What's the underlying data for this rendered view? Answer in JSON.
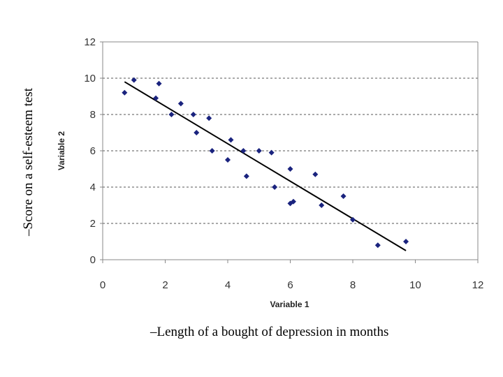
{
  "slide": {
    "y_caption": "–Score on a self-esteem test",
    "x_caption": "–Length of a bought of depression in months"
  },
  "chart_data": {
    "type": "scatter",
    "title": "",
    "xlabel": "Variable 1",
    "ylabel": "Variable 2",
    "xlim": [
      0,
      12
    ],
    "ylim": [
      0,
      12
    ],
    "xticks": [
      "0",
      "2",
      "4",
      "6",
      "8",
      "10",
      "12"
    ],
    "yticks": [
      "0",
      "2",
      "4",
      "6",
      "8",
      "10",
      "12"
    ],
    "grid": "horizontal dashed",
    "marker_color": "#1a237e",
    "line_color": "#000000",
    "points": [
      [
        0.7,
        9.2
      ],
      [
        1.0,
        9.9
      ],
      [
        1.7,
        8.9
      ],
      [
        1.8,
        9.7
      ],
      [
        2.2,
        8.0
      ],
      [
        2.5,
        8.6
      ],
      [
        2.9,
        8.0
      ],
      [
        3.0,
        7.0
      ],
      [
        3.4,
        7.8
      ],
      [
        3.5,
        6.0
      ],
      [
        4.0,
        5.5
      ],
      [
        4.1,
        6.6
      ],
      [
        4.5,
        6.0
      ],
      [
        4.6,
        4.6
      ],
      [
        5.0,
        6.0
      ],
      [
        5.4,
        5.9
      ],
      [
        5.5,
        4.0
      ],
      [
        6.0,
        5.0
      ],
      [
        6.0,
        3.1
      ],
      [
        6.1,
        3.2
      ],
      [
        6.8,
        4.7
      ],
      [
        7.0,
        3.0
      ],
      [
        7.7,
        3.5
      ],
      [
        8.0,
        2.2
      ],
      [
        8.8,
        0.8
      ],
      [
        9.7,
        1.0
      ]
    ],
    "trend_line": {
      "from": [
        0.7,
        9.8
      ],
      "to": [
        9.7,
        0.5
      ]
    }
  }
}
